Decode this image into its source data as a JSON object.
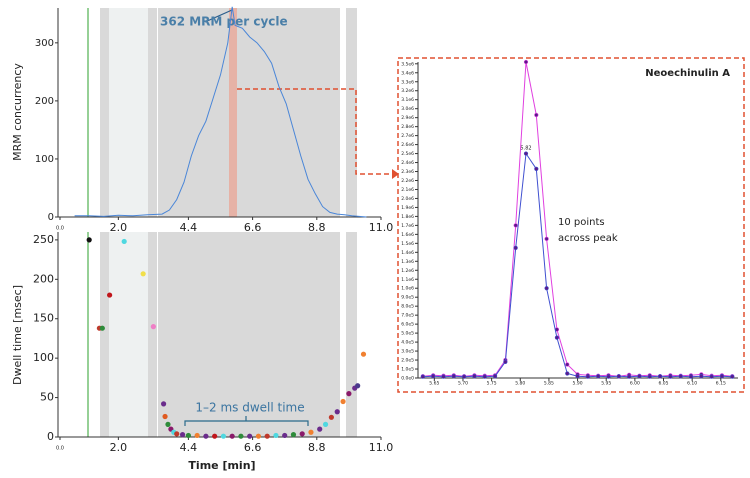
{
  "chart_data": [
    {
      "type": "line",
      "ylabel": "MRM concurrency",
      "annotation": "362 MRM per cycle",
      "color": "#4a86d8",
      "x": [
        0.5,
        1,
        1.5,
        2,
        2.5,
        3,
        3.5,
        3.75,
        4,
        4.25,
        4.5,
        4.75,
        5,
        5.25,
        5.5,
        5.75,
        5.9,
        6,
        6.25,
        6.5,
        6.75,
        7,
        7.25,
        7.5,
        7.75,
        8,
        8.25,
        8.5,
        8.75,
        9,
        9.25,
        9.5,
        9.75,
        10,
        10.25,
        10.5
      ],
      "values": [
        2,
        2,
        1,
        3,
        2,
        4,
        5,
        12,
        30,
        60,
        105,
        140,
        165,
        205,
        245,
        300,
        362,
        330,
        325,
        310,
        300,
        285,
        265,
        225,
        195,
        150,
        105,
        65,
        40,
        18,
        8,
        5,
        4,
        2,
        1,
        0
      ],
      "xlim": [
        0,
        11
      ],
      "xticks": [
        {
          "value": 0,
          "label": "0.0"
        },
        {
          "value": 2,
          "label": "2.0"
        },
        4.4,
        6.6,
        8.8,
        {
          "value": 11,
          "label": "11.0"
        }
      ],
      "ylim": [
        0,
        360
      ],
      "yticks": [
        0,
        100,
        200,
        300
      ]
    },
    {
      "type": "scatter",
      "ylabel": "Dwell time [msec]",
      "xlabel": "Time [min]",
      "annotation": "1–2 ms dwell time",
      "x": [
        1.0,
        1.35,
        1.45,
        1.7,
        2.2,
        2.85,
        3.2,
        3.55,
        3.6,
        3.7,
        3.8,
        3.9,
        4.0,
        4.2,
        4.4,
        4.7,
        5.0,
        5.3,
        5.6,
        5.9,
        6.2,
        6.5,
        6.8,
        7.1,
        7.4,
        7.7,
        8.0,
        8.3,
        8.6,
        8.9,
        9.1,
        9.3,
        9.5,
        9.7,
        9.9,
        10.1,
        10.2,
        10.4
      ],
      "values": [
        250,
        138,
        138,
        180,
        248,
        207,
        140,
        42,
        26,
        16,
        10,
        6,
        4,
        3,
        2,
        2,
        1,
        1,
        1,
        1,
        1,
        1,
        1,
        1,
        2,
        2,
        3,
        4,
        6,
        10,
        16,
        25,
        32,
        45,
        55,
        62,
        65,
        105
      ],
      "colors": [
        "#111111",
        "#c0392b",
        "#2e8b3a",
        "#c0161b",
        "#4fd8e0",
        "#f1df4a",
        "#ef7fc6",
        "#6a2c8c",
        "#e05a20",
        "#2e8b3a",
        "#8a1a6a",
        "#4fd8e0",
        "#c0392b",
        "#6a2c8c",
        "#2e8b3a",
        "#f08030",
        "#6a2c8c",
        "#c0161b",
        "#4fd8e0",
        "#8a1a6a",
        "#2e8b3a",
        "#6a2c8c",
        "#f08030",
        "#c0392b",
        "#4fd8e0",
        "#6a2c8c",
        "#2e8b3a",
        "#8a1a6a",
        "#f08030",
        "#6a2c8c",
        "#4fd8e0",
        "#c0392b",
        "#6a2c8c",
        "#f08030",
        "#8a1a6a",
        "#6a2c8c",
        "#4a3a8c",
        "#f08030"
      ],
      "xlim": [
        0,
        11
      ],
      "xticks": [
        {
          "value": 0,
          "label": "0.0"
        },
        {
          "value": 2,
          "label": "2.0"
        },
        4.4,
        6.6,
        8.8,
        {
          "value": 11,
          "label": "11.0"
        }
      ],
      "ylim": [
        0,
        260
      ],
      "yticks": [
        0,
        50,
        100,
        150,
        200,
        250
      ]
    },
    {
      "type": "line",
      "title": "Neoechinulin A",
      "peak_label": "5.82",
      "annotation": [
        "10 points",
        "across peak"
      ],
      "x": [
        5.63,
        5.648,
        5.666,
        5.684,
        5.702,
        5.72,
        5.738,
        5.756,
        5.774,
        5.792,
        5.81,
        5.828,
        5.846,
        5.864,
        5.882,
        5.9,
        5.918,
        5.936,
        5.954,
        5.972,
        5.99,
        6.008,
        6.026,
        6.044,
        6.062,
        6.08,
        6.098,
        6.116,
        6.134,
        6.152,
        6.17
      ],
      "series": [
        {
          "color": "#e040e0",
          "values": [
            20000,
            30000,
            25000,
            30000,
            20000,
            30000,
            25000,
            30000,
            200000,
            1700000,
            3520000,
            2930000,
            1550000,
            540000,
            150000,
            40000,
            30000,
            25000,
            30000,
            20000,
            35000,
            25000,
            30000,
            20000,
            30000,
            25000,
            30000,
            40000,
            25000,
            30000,
            20000
          ]
        },
        {
          "color": "#4050d0",
          "values": [
            15000,
            20000,
            15000,
            20000,
            15000,
            20000,
            15000,
            20000,
            180000,
            1450000,
            2500000,
            2330000,
            1000000,
            450000,
            50000,
            20000,
            15000,
            20000,
            15000,
            20000,
            15000,
            20000,
            15000,
            20000,
            15000,
            20000,
            15000,
            20000,
            15000,
            20000,
            15000
          ]
        }
      ],
      "xlim": [
        5.625,
        6.18
      ],
      "xticks": [
        5.65,
        {
          "value": 5.7,
          "label": "5.70"
        },
        5.75,
        {
          "value": 5.8,
          "label": "5.80"
        },
        5.85,
        {
          "value": 5.9,
          "label": "5.90"
        },
        5.95,
        {
          "value": 6,
          "label": "6.00"
        },
        6.05,
        {
          "value": 6.1,
          "label": "6.10"
        },
        6.15
      ],
      "ylim": [
        0,
        3520000
      ],
      "yticks": [
        {
          "value": 0,
          "label": "0.0e0"
        },
        {
          "value": 100000,
          "label": "1.0e5"
        },
        {
          "value": 200000,
          "label": "2.0e5"
        },
        {
          "value": 300000,
          "label": "3.0e5"
        },
        {
          "value": 400000,
          "label": "4.0e5"
        },
        {
          "value": 500000,
          "label": "5.0e5"
        },
        {
          "value": 600000,
          "label": "6.0e5"
        },
        {
          "value": 700000,
          "label": "7.0e5"
        },
        {
          "value": 800000,
          "label": "8.0e5"
        },
        {
          "value": 900000,
          "label": "9.0e5"
        },
        {
          "value": 1000000,
          "label": "1.0e6"
        },
        {
          "value": 1100000,
          "label": "1.1e6"
        },
        {
          "value": 1200000,
          "label": "1.2e6"
        },
        {
          "value": 1300000,
          "label": "1.3e6"
        },
        {
          "value": 1400000,
          "label": "1.4e6"
        },
        {
          "value": 1500000,
          "label": "1.5e6"
        },
        {
          "value": 1600000,
          "label": "1.6e6"
        },
        {
          "value": 1700000,
          "label": "1.7e6"
        },
        {
          "value": 1800000,
          "label": "1.8e6"
        },
        {
          "value": 1900000,
          "label": "1.9e6"
        },
        {
          "value": 2000000,
          "label": "2.0e6"
        },
        {
          "value": 2100000,
          "label": "2.1e6"
        },
        {
          "value": 2200000,
          "label": "2.2e6"
        },
        {
          "value": 2300000,
          "label": "2.3e6"
        },
        {
          "value": 2400000,
          "label": "2.4e6"
        },
        {
          "value": 2500000,
          "label": "2.5e6"
        },
        {
          "value": 2600000,
          "label": "2.6e6"
        },
        {
          "value": 2700000,
          "label": "2.7e6"
        },
        {
          "value": 2800000,
          "label": "2.8e6"
        },
        {
          "value": 2900000,
          "label": "2.9e6"
        },
        {
          "value": 3000000,
          "label": "3.0e6"
        },
        {
          "value": 3100000,
          "label": "3.1e6"
        },
        {
          "value": 3200000,
          "label": "3.2e6"
        },
        {
          "value": 3300000,
          "label": "3.3e6"
        },
        {
          "value": 3400000,
          "label": "3.4e6"
        },
        {
          "value": 3500000,
          "label": "3.5e6"
        }
      ]
    }
  ]
}
